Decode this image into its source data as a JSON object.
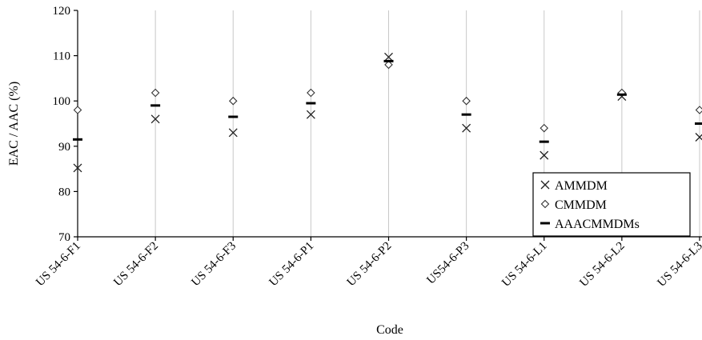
{
  "chart_data": {
    "type": "scatter",
    "title": "",
    "xlabel": "Code",
    "ylabel": "EAC / AAC (%)",
    "ylim": [
      70,
      120
    ],
    "yticks": [
      70,
      80,
      90,
      100,
      110,
      120
    ],
    "categories": [
      "US 54-6-F1",
      "US 54-6-F2",
      "US 54-6-F3",
      "US 54-6-P1",
      "US 54-6-P2",
      "US54-6-P3",
      "US 54-6-L1",
      "US 54-6-L2",
      "US 54-6-L3"
    ],
    "grid": "vertical",
    "legend_position": "bottom-right",
    "series": [
      {
        "name": "AMMDM",
        "marker": "x",
        "values": [
          85.2,
          96.0,
          93.0,
          97.0,
          109.7,
          94.0,
          88.0,
          101.0,
          92.0
        ]
      },
      {
        "name": "CMMDM",
        "marker": "diamond",
        "values": [
          98.0,
          101.8,
          100.0,
          101.8,
          108.0,
          100.0,
          94.0,
          101.8,
          98.0
        ]
      },
      {
        "name": "AAACMMDMs",
        "marker": "dash",
        "values": [
          91.5,
          99.0,
          96.5,
          99.5,
          108.8,
          97.0,
          91.0,
          101.4,
          95.0
        ]
      }
    ]
  }
}
